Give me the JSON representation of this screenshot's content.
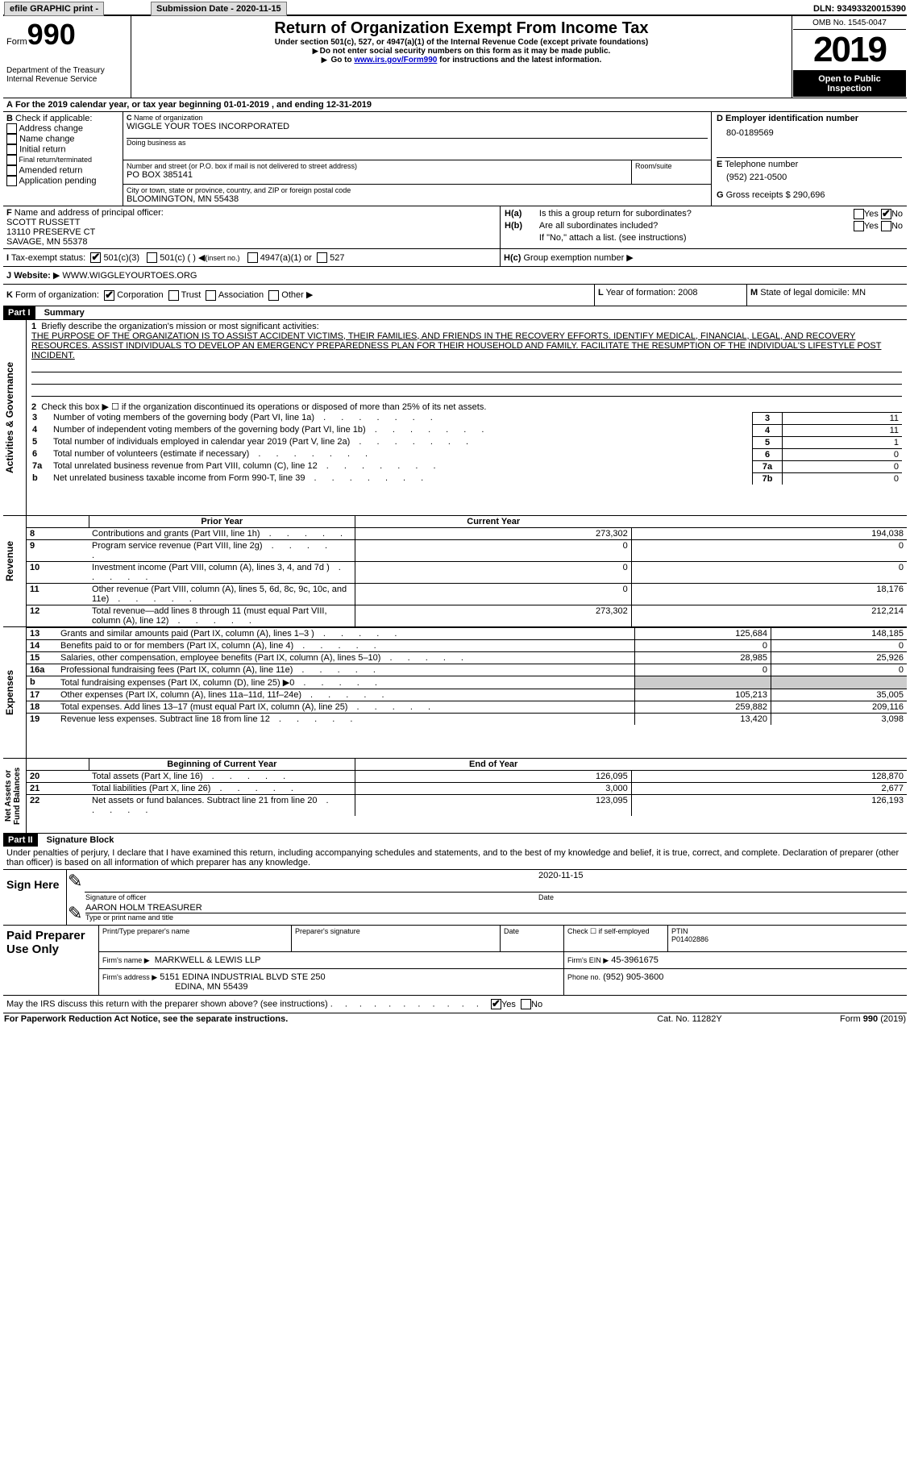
{
  "topbar": {
    "efile": "efile GRAPHIC print -",
    "submission_label": "Submission Date - 2020-11-15",
    "dln_label": "DLN: 93493320015390"
  },
  "header": {
    "form_small": "Form",
    "form_big": "990",
    "dept1": "Department of the Treasury",
    "dept2": "Internal Revenue Service",
    "title": "Return of Organization Exempt From Income Tax",
    "subtitle": "Under section 501(c), 527, or 4947(a)(1) of the Internal Revenue Code (except private foundations)",
    "note1": "Do not enter social security numbers on this form as it may be made public.",
    "note2_pre": "Go to ",
    "note2_link": "www.irs.gov/Form990",
    "note2_post": " for instructions and the latest information.",
    "omb": "OMB No. 1545-0047",
    "year": "2019",
    "inspection1": "Open to Public",
    "inspection2": "Inspection"
  },
  "periodA": "For the 2019 calendar year, or tax year beginning 01-01-2019   , and ending 12-31-2019",
  "boxB": {
    "label": "Check if applicable:",
    "opts": [
      "Address change",
      "Name change",
      "Initial return",
      "Final return/terminated",
      "Amended return",
      "Application pending"
    ]
  },
  "boxC": {
    "name_label": "Name of organization",
    "name": "WIGGLE YOUR TOES INCORPORATED",
    "dba_label": "Doing business as",
    "addr_label": "Number and street (or P.O. box if mail is not delivered to street address)",
    "addr": "PO BOX 385141",
    "room_label": "Room/suite",
    "city_label": "City or town, state or province, country, and ZIP or foreign postal code",
    "city": "BLOOMINGTON, MN  55438"
  },
  "boxD": {
    "label": "Employer identification number",
    "val": "80-0189569"
  },
  "boxE": {
    "label": "Telephone number",
    "val": "(952) 221-0500"
  },
  "boxG": {
    "label": "Gross receipts $",
    "val": "290,696"
  },
  "boxF": {
    "label": "Name and address of principal officer:",
    "l1": "SCOTT RUSSETT",
    "l2": "13110 PRESERVE CT",
    "l3": "SAVAGE, MN  55378"
  },
  "boxH": {
    "a": "Is this a group return for subordinates?",
    "b": "Are all subordinates included?",
    "note": "If \"No,\" attach a list. (see instructions)",
    "c_label": "Group exemption number"
  },
  "boxI": {
    "label": "Tax-exempt status:",
    "o1": "501(c)(3)",
    "o2": "501(c) (  )",
    "o2b": "(insert no.)",
    "o3": "4947(a)(1) or",
    "o4": "527"
  },
  "boxJ": {
    "label": "Website:",
    "val": "WWW.WIGGLEYOURTOES.ORG"
  },
  "boxK": {
    "label": "Form of organization:",
    "o1": "Corporation",
    "o2": "Trust",
    "o3": "Association",
    "o4": "Other"
  },
  "boxL": {
    "label": "Year of formation:",
    "val": "2008"
  },
  "boxM": {
    "label": "State of legal domicile:",
    "val": "MN"
  },
  "part1": {
    "title": "Part I",
    "heading": "Summary",
    "l1_label": "Briefly describe the organization's mission or most significant activities:",
    "l1_text": "THE PURPOSE OF THE ORGANIZATION IS TO ASSIST ACCIDENT VICTIMS, THEIR FAMILIES, AND FRIENDS IN THE RECOVERY EFFORTS. IDENTIFY MEDICAL, FINANCIAL, LEGAL, AND RECOVERY RESOURCES. ASSIST INDIVIDUALS TO DEVELOP AN EMERGENCY PREPAREDNESS PLAN FOR THEIR HOUSEHOLD AND FAMILY. FACILITATE THE RESUMPTION OF THE INDIVIDUAL'S LIFESTYLE POST INCIDENT.",
    "l2": "Check this box ▶ ☐ if the organization discontinued its operations or disposed of more than 25% of its net assets.",
    "rows_gov": [
      {
        "n": "3",
        "t": "Number of voting members of the governing body (Part VI, line 1a)",
        "box": "3",
        "v": "11"
      },
      {
        "n": "4",
        "t": "Number of independent voting members of the governing body (Part VI, line 1b)",
        "box": "4",
        "v": "11"
      },
      {
        "n": "5",
        "t": "Total number of individuals employed in calendar year 2019 (Part V, line 2a)",
        "box": "5",
        "v": "1"
      },
      {
        "n": "6",
        "t": "Total number of volunteers (estimate if necessary)",
        "box": "6",
        "v": "0"
      },
      {
        "n": "7a",
        "t": "Total unrelated business revenue from Part VIII, column (C), line 12",
        "box": "7a",
        "v": "0"
      },
      {
        "n": "b",
        "t": "Net unrelated business taxable income from Form 990-T, line 39",
        "box": "7b",
        "v": "0"
      }
    ],
    "col_prior": "Prior Year",
    "col_current": "Current Year",
    "rows_rev": [
      {
        "n": "8",
        "t": "Contributions and grants (Part VIII, line 1h)",
        "p": "273,302",
        "c": "194,038"
      },
      {
        "n": "9",
        "t": "Program service revenue (Part VIII, line 2g)",
        "p": "0",
        "c": "0"
      },
      {
        "n": "10",
        "t": "Investment income (Part VIII, column (A), lines 3, 4, and 7d )",
        "p": "0",
        "c": "0"
      },
      {
        "n": "11",
        "t": "Other revenue (Part VIII, column (A), lines 5, 6d, 8c, 9c, 10c, and 11e)",
        "p": "0",
        "c": "18,176"
      },
      {
        "n": "12",
        "t": "Total revenue—add lines 8 through 11 (must equal Part VIII, column (A), line 12)",
        "p": "273,302",
        "c": "212,214"
      }
    ],
    "rows_exp": [
      {
        "n": "13",
        "t": "Grants and similar amounts paid (Part IX, column (A), lines 1–3 )",
        "p": "125,684",
        "c": "148,185"
      },
      {
        "n": "14",
        "t": "Benefits paid to or for members (Part IX, column (A), line 4)",
        "p": "0",
        "c": "0"
      },
      {
        "n": "15",
        "t": "Salaries, other compensation, employee benefits (Part IX, column (A), lines 5–10)",
        "p": "28,985",
        "c": "25,926"
      },
      {
        "n": "16a",
        "t": "Professional fundraising fees (Part IX, column (A), line 11e)",
        "p": "0",
        "c": "0"
      },
      {
        "n": "b",
        "t": "Total fundraising expenses (Part IX, column (D), line 25) ▶0",
        "p": "grey",
        "c": "grey"
      },
      {
        "n": "17",
        "t": "Other expenses (Part IX, column (A), lines 11a–11d, 11f–24e)",
        "p": "105,213",
        "c": "35,005"
      },
      {
        "n": "18",
        "t": "Total expenses. Add lines 13–17 (must equal Part IX, column (A), line 25)",
        "p": "259,882",
        "c": "209,116"
      },
      {
        "n": "19",
        "t": "Revenue less expenses. Subtract line 18 from line 12",
        "p": "13,420",
        "c": "3,098"
      }
    ],
    "col_begin": "Beginning of Current Year",
    "col_end": "End of Year",
    "rows_net": [
      {
        "n": "20",
        "t": "Total assets (Part X, line 16)",
        "p": "126,095",
        "c": "128,870"
      },
      {
        "n": "21",
        "t": "Total liabilities (Part X, line 26)",
        "p": "3,000",
        "c": "2,677"
      },
      {
        "n": "22",
        "t": "Net assets or fund balances. Subtract line 21 from line 20",
        "p": "123,095",
        "c": "126,193"
      }
    ],
    "side_gov": "Activities & Governance",
    "side_rev": "Revenue",
    "side_exp": "Expenses",
    "side_net": "Net Assets or Fund Balances"
  },
  "part2": {
    "title": "Part II",
    "heading": "Signature Block",
    "decl": "Under penalties of perjury, I declare that I have examined this return, including accompanying schedules and statements, and to the best of my knowledge and belief, it is true, correct, and complete. Declaration of preparer (other than officer) is based on all information of which preparer has any knowledge.",
    "sign_here": "Sign Here",
    "sig_officer": "Signature of officer",
    "sig_date": "2020-11-15",
    "date_lbl": "Date",
    "name_title": "AARON HOLM  TREASURER",
    "name_lbl": "Type or print name and title",
    "paid": "Paid Preparer Use Only",
    "prep_name_lbl": "Print/Type preparer's name",
    "prep_sig_lbl": "Preparer's signature",
    "prep_date_lbl": "Date",
    "check_self": "Check ☐ if self-employed",
    "ptin_lbl": "PTIN",
    "ptin": "P01402886",
    "firm_name_lbl": "Firm's name   ▶",
    "firm_name": "MARKWELL & LEWIS LLP",
    "firm_ein_lbl": "Firm's EIN ▶",
    "firm_ein": "45-3961675",
    "firm_addr_lbl": "Firm's address ▶",
    "firm_addr1": "5151 EDINA INDUSTRIAL BLVD STE 250",
    "firm_addr2": "EDINA, MN  55439",
    "phone_lbl": "Phone no.",
    "phone": "(952) 905-3600",
    "discuss": "May the IRS discuss this return with the preparer shown above? (see instructions)"
  },
  "footer": {
    "left": "For Paperwork Reduction Act Notice, see the separate instructions.",
    "mid": "Cat. No. 11282Y",
    "right": "Form 990 (2019)"
  }
}
